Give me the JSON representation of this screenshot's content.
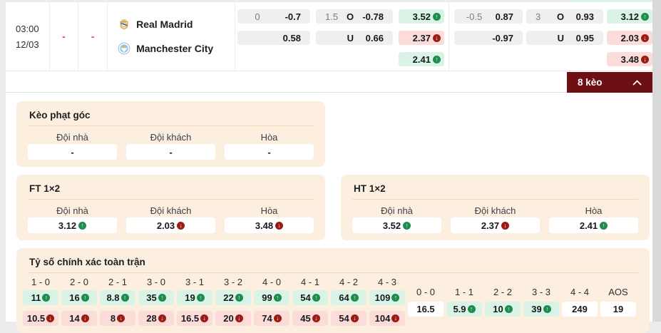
{
  "icons": {
    "trend_up": "↑",
    "trend_down": "↓",
    "collapse": "chevron-up"
  },
  "colors": {
    "accent": "#6e0f13",
    "panel_bg": "#fcefdf",
    "up_bg": "#d9f4e6",
    "down_bg": "#fbdcd9",
    "up_icon": "#1f8b4d",
    "down_icon": "#9b1b15"
  },
  "match": {
    "time": "03:00",
    "date": "12/03",
    "score_home": "-",
    "score_away": "-",
    "home_team": "Real Madrid",
    "away_team": "Manchester City",
    "groups": [
      {
        "hdp_line": "0",
        "hdp_home": "-0.7",
        "hdp_away": "0.58",
        "ou_line": "1.5",
        "over_label": "O",
        "over_odds": "-0.78",
        "under_label": "U",
        "under_odds": "0.66",
        "home_odds": "3.52",
        "home_trend": "up",
        "away_odds": "2.37",
        "away_trend": "down",
        "draw_odds": "2.41",
        "draw_trend": "up"
      },
      {
        "hdp_line": "-0.5",
        "hdp_home": "0.87",
        "hdp_away": "-0.97",
        "ou_line": "3",
        "over_label": "O",
        "over_odds": "0.93",
        "under_label": "U",
        "under_odds": "0.95",
        "home_odds": "3.12",
        "home_trend": "up",
        "away_odds": "2.03",
        "away_trend": "down",
        "draw_odds": "3.48",
        "draw_trend": "down"
      }
    ]
  },
  "toggle": {
    "label": "8 kèo"
  },
  "corners": {
    "title": "Kèo phạt góc",
    "headers": [
      "Đội nhà",
      "Đội khách",
      "Hòa"
    ],
    "values": [
      "-",
      "-",
      "-"
    ]
  },
  "ft": {
    "title": "FT 1×2",
    "headers": [
      "Đội nhà",
      "Đội khách",
      "Hòa"
    ],
    "cells": [
      {
        "value": "3.12",
        "trend": "up"
      },
      {
        "value": "2.03",
        "trend": "down"
      },
      {
        "value": "3.48",
        "trend": "down"
      }
    ]
  },
  "ht": {
    "title": "HT 1×2",
    "headers": [
      "Đội nhà",
      "Đội khách",
      "Hòa"
    ],
    "cells": [
      {
        "value": "3.52",
        "trend": "up"
      },
      {
        "value": "2.37",
        "trend": "down"
      },
      {
        "value": "2.41",
        "trend": "up"
      }
    ]
  },
  "correct_score": {
    "title": "Tỷ số chính xác toàn trận",
    "columns": [
      {
        "score": "1 - 0",
        "up": "11",
        "down": "10.5"
      },
      {
        "score": "2 - 0",
        "up": "16",
        "down": "14"
      },
      {
        "score": "2 - 1",
        "up": "8.8",
        "down": "8"
      },
      {
        "score": "3 - 0",
        "up": "35",
        "down": "28"
      },
      {
        "score": "3 - 1",
        "up": "19",
        "down": "16.5"
      },
      {
        "score": "3 - 2",
        "up": "22",
        "down": "20"
      },
      {
        "score": "4 - 0",
        "up": "99",
        "down": "74"
      },
      {
        "score": "4 - 1",
        "up": "54",
        "down": "45"
      },
      {
        "score": "4 - 2",
        "up": "64",
        "down": "54"
      },
      {
        "score": "4 - 3",
        "up": "109",
        "down": "104"
      }
    ],
    "single_columns": [
      {
        "score": "0 - 0",
        "value": "16.5",
        "trend": ""
      },
      {
        "score": "1 - 1",
        "value": "5.9",
        "trend": "up"
      },
      {
        "score": "2 - 2",
        "value": "10",
        "trend": "up"
      },
      {
        "score": "3 - 3",
        "value": "39",
        "trend": "up"
      },
      {
        "score": "4 - 4",
        "value": "249",
        "trend": ""
      },
      {
        "score": "AOS",
        "value": "19",
        "trend": ""
      }
    ]
  }
}
